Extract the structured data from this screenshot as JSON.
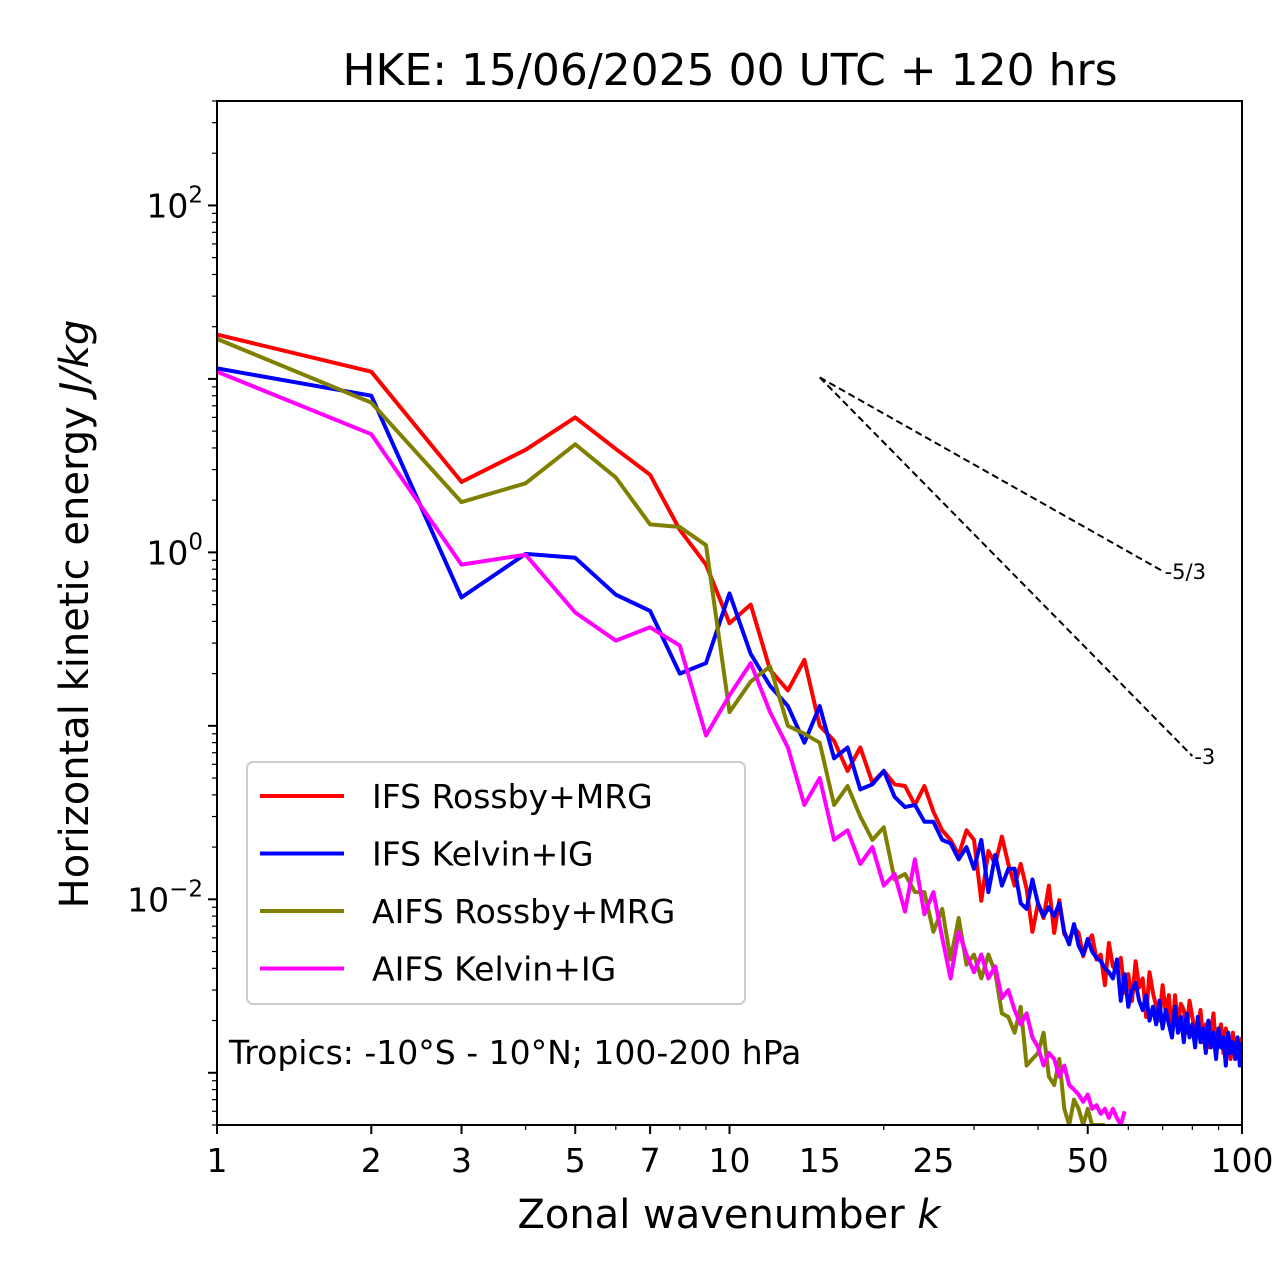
{
  "chart_data": {
    "type": "line",
    "title": "HKE: 15/06/2025 00 UTC + 120 hrs",
    "xlabel": "Zonal wavenumber",
    "xlabel_var": "k",
    "ylabel": "Horizontal kinetic energy",
    "ylabel_unit": "J/kg",
    "xscale": "log",
    "yscale": "log",
    "xlim": [
      1,
      100
    ],
    "ylim": [
      0.0005,
      400
    ],
    "grid": false,
    "legend_position": "lower-left",
    "annotation": "Tropics: -10°S - 10°N; 100-200 hPa",
    "x_ticks": [
      {
        "value": 1,
        "label": "1"
      },
      {
        "value": 2,
        "label": "2"
      },
      {
        "value": 3,
        "label": "3"
      },
      {
        "value": 5,
        "label": "5"
      },
      {
        "value": 7,
        "label": "7"
      },
      {
        "value": 10,
        "label": "10"
      },
      {
        "value": 15,
        "label": "15"
      },
      {
        "value": 25,
        "label": "25"
      },
      {
        "value": 50,
        "label": "50"
      },
      {
        "value": 100,
        "label": "100"
      }
    ],
    "y_ticks": [
      {
        "value": 100,
        "base": "10",
        "exp": "2"
      },
      {
        "value": 1,
        "base": "10",
        "exp": "0"
      },
      {
        "value": 0.01,
        "base": "10",
        "exp": "−2"
      }
    ],
    "reference_slopes": [
      {
        "label": "-5/3",
        "x_start": 15,
        "y_start": 10.2,
        "x_end": 70,
        "y_end": 0.78
      },
      {
        "label": "-3",
        "x_start": 15,
        "y_start": 10.2,
        "x_end": 80,
        "y_end": 0.067
      }
    ],
    "series": [
      {
        "name": "IFS Rossby+MRG",
        "color": "#ff0000",
        "x": [
          1,
          2,
          3,
          4,
          5,
          6,
          7,
          8,
          9,
          10,
          11,
          12,
          13,
          14,
          15,
          16,
          17,
          18,
          19,
          20,
          21,
          22,
          23,
          24,
          25,
          26,
          27,
          28,
          29,
          30,
          31,
          32,
          33,
          34,
          35,
          36,
          37,
          38,
          39,
          40,
          41,
          42,
          43,
          44,
          45,
          46,
          47,
          48,
          49,
          50,
          51,
          52,
          53,
          54,
          55,
          56,
          57,
          58,
          59,
          60,
          61,
          62,
          63,
          64,
          65,
          66,
          67,
          68,
          69,
          70,
          71,
          72,
          73,
          74,
          75,
          76,
          77,
          78,
          79,
          80,
          81,
          82,
          83,
          84,
          85,
          86,
          87,
          88,
          89,
          90,
          91,
          92,
          93,
          94,
          95,
          96,
          97,
          98,
          99,
          100
        ],
        "values": [
          18,
          11,
          2.55,
          3.9,
          6,
          3.95,
          2.8,
          1.35,
          0.85,
          0.39,
          0.5,
          0.21,
          0.16,
          0.24,
          0.1,
          0.082,
          0.055,
          0.075,
          0.047,
          0.055,
          0.046,
          0.045,
          0.035,
          0.045,
          0.032,
          0.025,
          0.022,
          0.018,
          0.025,
          0.022,
          0.0098,
          0.019,
          0.016,
          0.023,
          0.016,
          0.012,
          0.016,
          0.0115,
          0.0065,
          0.0095,
          0.0078,
          0.012,
          0.0064,
          0.0099,
          0.0063,
          0.0058,
          0.0069,
          0.0064,
          0.0047,
          0.0057,
          0.0062,
          0.0045,
          0.0048,
          0.0032,
          0.0056,
          0.0041,
          0.0039,
          0.0046,
          0.0029,
          0.0037,
          0.0026,
          0.0044,
          0.0031,
          0.0035,
          0.0021,
          0.0038,
          0.0029,
          0.0024,
          0.002,
          0.0032,
          0.0022,
          0.0028,
          0.0016,
          0.0028,
          0.0019,
          0.0025,
          0.0023,
          0.0017,
          0.0026,
          0.0021,
          0.0017,
          0.0018,
          0.0023,
          0.0015,
          0.0019,
          0.0014,
          0.0017,
          0.0022,
          0.0013,
          0.0016,
          0.0019,
          0.0013,
          0.0018,
          0.0016,
          0.0012,
          0.0017,
          0.0012,
          0.0015,
          0.0014,
          0.0016
        ]
      },
      {
        "name": "IFS Kelvin+IG",
        "color": "#0000ff",
        "x": [
          1,
          2,
          3,
          4,
          5,
          6,
          7,
          8,
          9,
          10,
          11,
          12,
          13,
          14,
          15,
          16,
          17,
          18,
          19,
          20,
          21,
          22,
          23,
          24,
          25,
          26,
          27,
          28,
          29,
          30,
          31,
          32,
          33,
          34,
          35,
          36,
          37,
          38,
          39,
          40,
          41,
          42,
          43,
          44,
          45,
          46,
          47,
          48,
          49,
          50,
          51,
          52,
          53,
          54,
          55,
          56,
          57,
          58,
          59,
          60,
          61,
          62,
          63,
          64,
          65,
          66,
          67,
          68,
          69,
          70,
          71,
          72,
          73,
          74,
          75,
          76,
          77,
          78,
          79,
          80,
          81,
          82,
          83,
          84,
          85,
          86,
          87,
          88,
          89,
          90,
          91,
          92,
          93,
          94,
          95,
          96,
          97,
          98,
          99,
          100
        ],
        "values": [
          11.5,
          8,
          0.55,
          0.98,
          0.93,
          0.57,
          0.46,
          0.2,
          0.23,
          0.58,
          0.26,
          0.17,
          0.13,
          0.08,
          0.13,
          0.065,
          0.075,
          0.043,
          0.046,
          0.055,
          0.039,
          0.034,
          0.035,
          0.028,
          0.028,
          0.022,
          0.021,
          0.017,
          0.02,
          0.015,
          0.022,
          0.011,
          0.018,
          0.012,
          0.015,
          0.015,
          0.0095,
          0.0088,
          0.013,
          0.0094,
          0.008,
          0.009,
          0.008,
          0.0095,
          0.0065,
          0.0055,
          0.0072,
          0.0054,
          0.0048,
          0.0059,
          0.005,
          0.0046,
          0.0044,
          0.004,
          0.0038,
          0.0035,
          0.0045,
          0.0026,
          0.0037,
          0.0024,
          0.003,
          0.0033,
          0.0026,
          0.0023,
          0.0028,
          0.002,
          0.0024,
          0.0019,
          0.0026,
          0.0018,
          0.0023,
          0.0019,
          0.0016,
          0.0024,
          0.0017,
          0.0021,
          0.0015,
          0.0022,
          0.0016,
          0.0019,
          0.0014,
          0.0021,
          0.0015,
          0.0018,
          0.0013,
          0.002,
          0.0014,
          0.0017,
          0.0012,
          0.0018,
          0.0014,
          0.0016,
          0.0011,
          0.0017,
          0.0013,
          0.0015,
          0.0012,
          0.0016,
          0.0011,
          0.0015
        ]
      },
      {
        "name": "AIFS Rossby+MRG",
        "color": "#808000",
        "x": [
          1,
          2,
          3,
          4,
          5,
          6,
          7,
          8,
          9,
          10,
          11,
          12,
          13,
          14,
          15,
          16,
          17,
          18,
          19,
          20,
          21,
          22,
          23,
          24,
          25,
          26,
          27,
          28,
          29,
          30,
          31,
          32,
          33,
          34,
          35,
          36,
          37,
          38,
          39,
          40,
          41,
          42,
          43,
          44,
          45,
          46,
          47,
          48,
          49,
          50,
          51,
          52,
          53,
          54
        ],
        "values": [
          17,
          7.3,
          1.95,
          2.5,
          4.2,
          2.7,
          1.45,
          1.4,
          1.1,
          0.12,
          0.18,
          0.22,
          0.1,
          0.09,
          0.08,
          0.035,
          0.045,
          0.03,
          0.022,
          0.026,
          0.013,
          0.014,
          0.011,
          0.011,
          0.0065,
          0.0088,
          0.0045,
          0.0078,
          0.0042,
          0.0048,
          0.0035,
          0.0048,
          0.0038,
          0.0022,
          0.0021,
          0.0017,
          0.0024,
          0.0011,
          0.0012,
          0.0013,
          0.0017,
          0.00095,
          0.00085,
          0.0012,
          0.00062,
          0.0005,
          0.0007,
          0.00062,
          0.0005,
          0.00062,
          0.0005,
          0.0005,
          0.0005,
          0.0005
        ]
      },
      {
        "name": "AIFS Kelvin+IG",
        "color": "#ff00ff",
        "x": [
          1,
          2,
          3,
          4,
          5,
          6,
          7,
          8,
          9,
          10,
          11,
          12,
          13,
          14,
          15,
          16,
          17,
          18,
          19,
          20,
          21,
          22,
          23,
          24,
          25,
          26,
          27,
          28,
          29,
          30,
          31,
          32,
          33,
          34,
          35,
          36,
          37,
          38,
          39,
          40,
          41,
          42,
          43,
          44,
          45,
          46,
          47,
          48,
          49,
          50,
          51,
          52,
          53,
          54,
          55,
          56,
          57,
          58,
          59
        ],
        "values": [
          11,
          4.8,
          0.85,
          0.97,
          0.45,
          0.31,
          0.37,
          0.29,
          0.088,
          0.15,
          0.23,
          0.12,
          0.075,
          0.035,
          0.05,
          0.022,
          0.025,
          0.016,
          0.02,
          0.012,
          0.014,
          0.0085,
          0.017,
          0.0082,
          0.011,
          0.006,
          0.0035,
          0.0065,
          0.0048,
          0.0038,
          0.0048,
          0.0035,
          0.0041,
          0.0027,
          0.003,
          0.0023,
          0.0019,
          0.0022,
          0.0016,
          0.0014,
          0.0011,
          0.0013,
          0.0012,
          0.00095,
          0.0011,
          0.00085,
          0.0008,
          0.00075,
          0.00068,
          0.00075,
          0.00062,
          0.00065,
          0.00058,
          0.00062,
          0.00055,
          0.00062,
          0.00055,
          0.0005,
          0.0006
        ]
      }
    ]
  }
}
